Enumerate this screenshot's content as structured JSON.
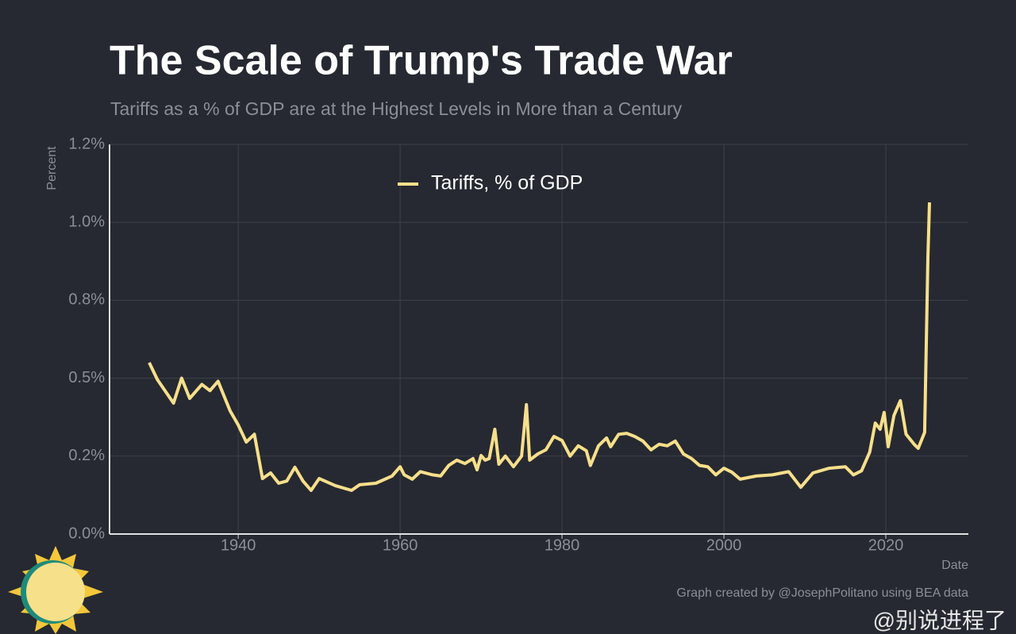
{
  "chart_data": {
    "type": "line",
    "title": "The Scale of Trump's Trade War",
    "subtitle": "Tariffs as a % of GDP are at the Highest Levels in More than a Century",
    "y_label": "Percent",
    "x_label": "Date",
    "footer": "Graph created by @JosephPolitano using BEA data",
    "watermark": "@别说进程了",
    "grid": true,
    "legend": "top",
    "xlim": [
      1924.1,
      2030.2
    ],
    "xticks": [
      1940,
      1960,
      1980,
      2000,
      2020
    ],
    "ylim": [
      0,
      1.25
    ],
    "yticks": [
      {
        "value": 0,
        "label": "0.0%"
      },
      {
        "value": 0.25,
        "label": "0.2%"
      },
      {
        "value": 0.5,
        "label": "0.5%"
      },
      {
        "value": 0.75,
        "label": "0.8%"
      },
      {
        "value": 1.0,
        "label": "1.0%"
      },
      {
        "value": 1.25,
        "label": "1.2%"
      }
    ],
    "series": [
      {
        "name": "Tariffs, % of GDP",
        "color": "#f7df8b",
        "x": [
          1929,
          1930,
          1932,
          1933,
          1934,
          1935.5,
          1936.5,
          1937.5,
          1939,
          1940,
          1941,
          1942,
          1943,
          1944,
          1945,
          1946,
          1947,
          1948,
          1949,
          1950,
          1952,
          1954,
          1955,
          1957,
          1959,
          1960,
          1960.5,
          1961.5,
          1962.5,
          1964,
          1965,
          1966,
          1967,
          1968,
          1969,
          1969.5,
          1970,
          1970.5,
          1971,
          1971.7,
          1972.2,
          1973,
          1974,
          1975,
          1975.6,
          1976,
          1977,
          1978,
          1979,
          1980,
          1981,
          1982,
          1983,
          1983.5,
          1984.5,
          1985.5,
          1986,
          1987,
          1988,
          1989,
          1990,
          1991,
          1992,
          1993,
          1994,
          1995,
          1996,
          1997,
          1998,
          1999,
          2000,
          2001,
          2002,
          2004,
          2006,
          2008,
          2009.5,
          2011,
          2013,
          2015,
          2016,
          2017,
          2018,
          2018.7,
          2019.3,
          2019.8,
          2020.3,
          2021,
          2021.8,
          2022.5,
          2023.5,
          2024,
          2024.8,
          2025.2,
          2025.4
        ],
        "values": [
          0.55,
          0.496,
          0.42,
          0.5,
          0.435,
          0.48,
          0.46,
          0.49,
          0.395,
          0.35,
          0.295,
          0.32,
          0.178,
          0.196,
          0.163,
          0.17,
          0.214,
          0.17,
          0.14,
          0.178,
          0.155,
          0.14,
          0.158,
          0.163,
          0.186,
          0.216,
          0.19,
          0.176,
          0.2,
          0.19,
          0.186,
          0.22,
          0.237,
          0.226,
          0.242,
          0.206,
          0.252,
          0.237,
          0.242,
          0.336,
          0.224,
          0.25,
          0.216,
          0.25,
          0.415,
          0.237,
          0.257,
          0.27,
          0.313,
          0.3,
          0.25,
          0.283,
          0.267,
          0.22,
          0.283,
          0.308,
          0.28,
          0.32,
          0.323,
          0.313,
          0.298,
          0.27,
          0.288,
          0.283,
          0.298,
          0.257,
          0.242,
          0.22,
          0.216,
          0.19,
          0.211,
          0.198,
          0.176,
          0.186,
          0.19,
          0.2,
          0.15,
          0.196,
          0.211,
          0.216,
          0.19,
          0.203,
          0.262,
          0.356,
          0.336,
          0.39,
          0.28,
          0.38,
          0.428,
          0.32,
          0.288,
          0.275,
          0.326,
          0.886,
          1.064
        ]
      }
    ]
  }
}
